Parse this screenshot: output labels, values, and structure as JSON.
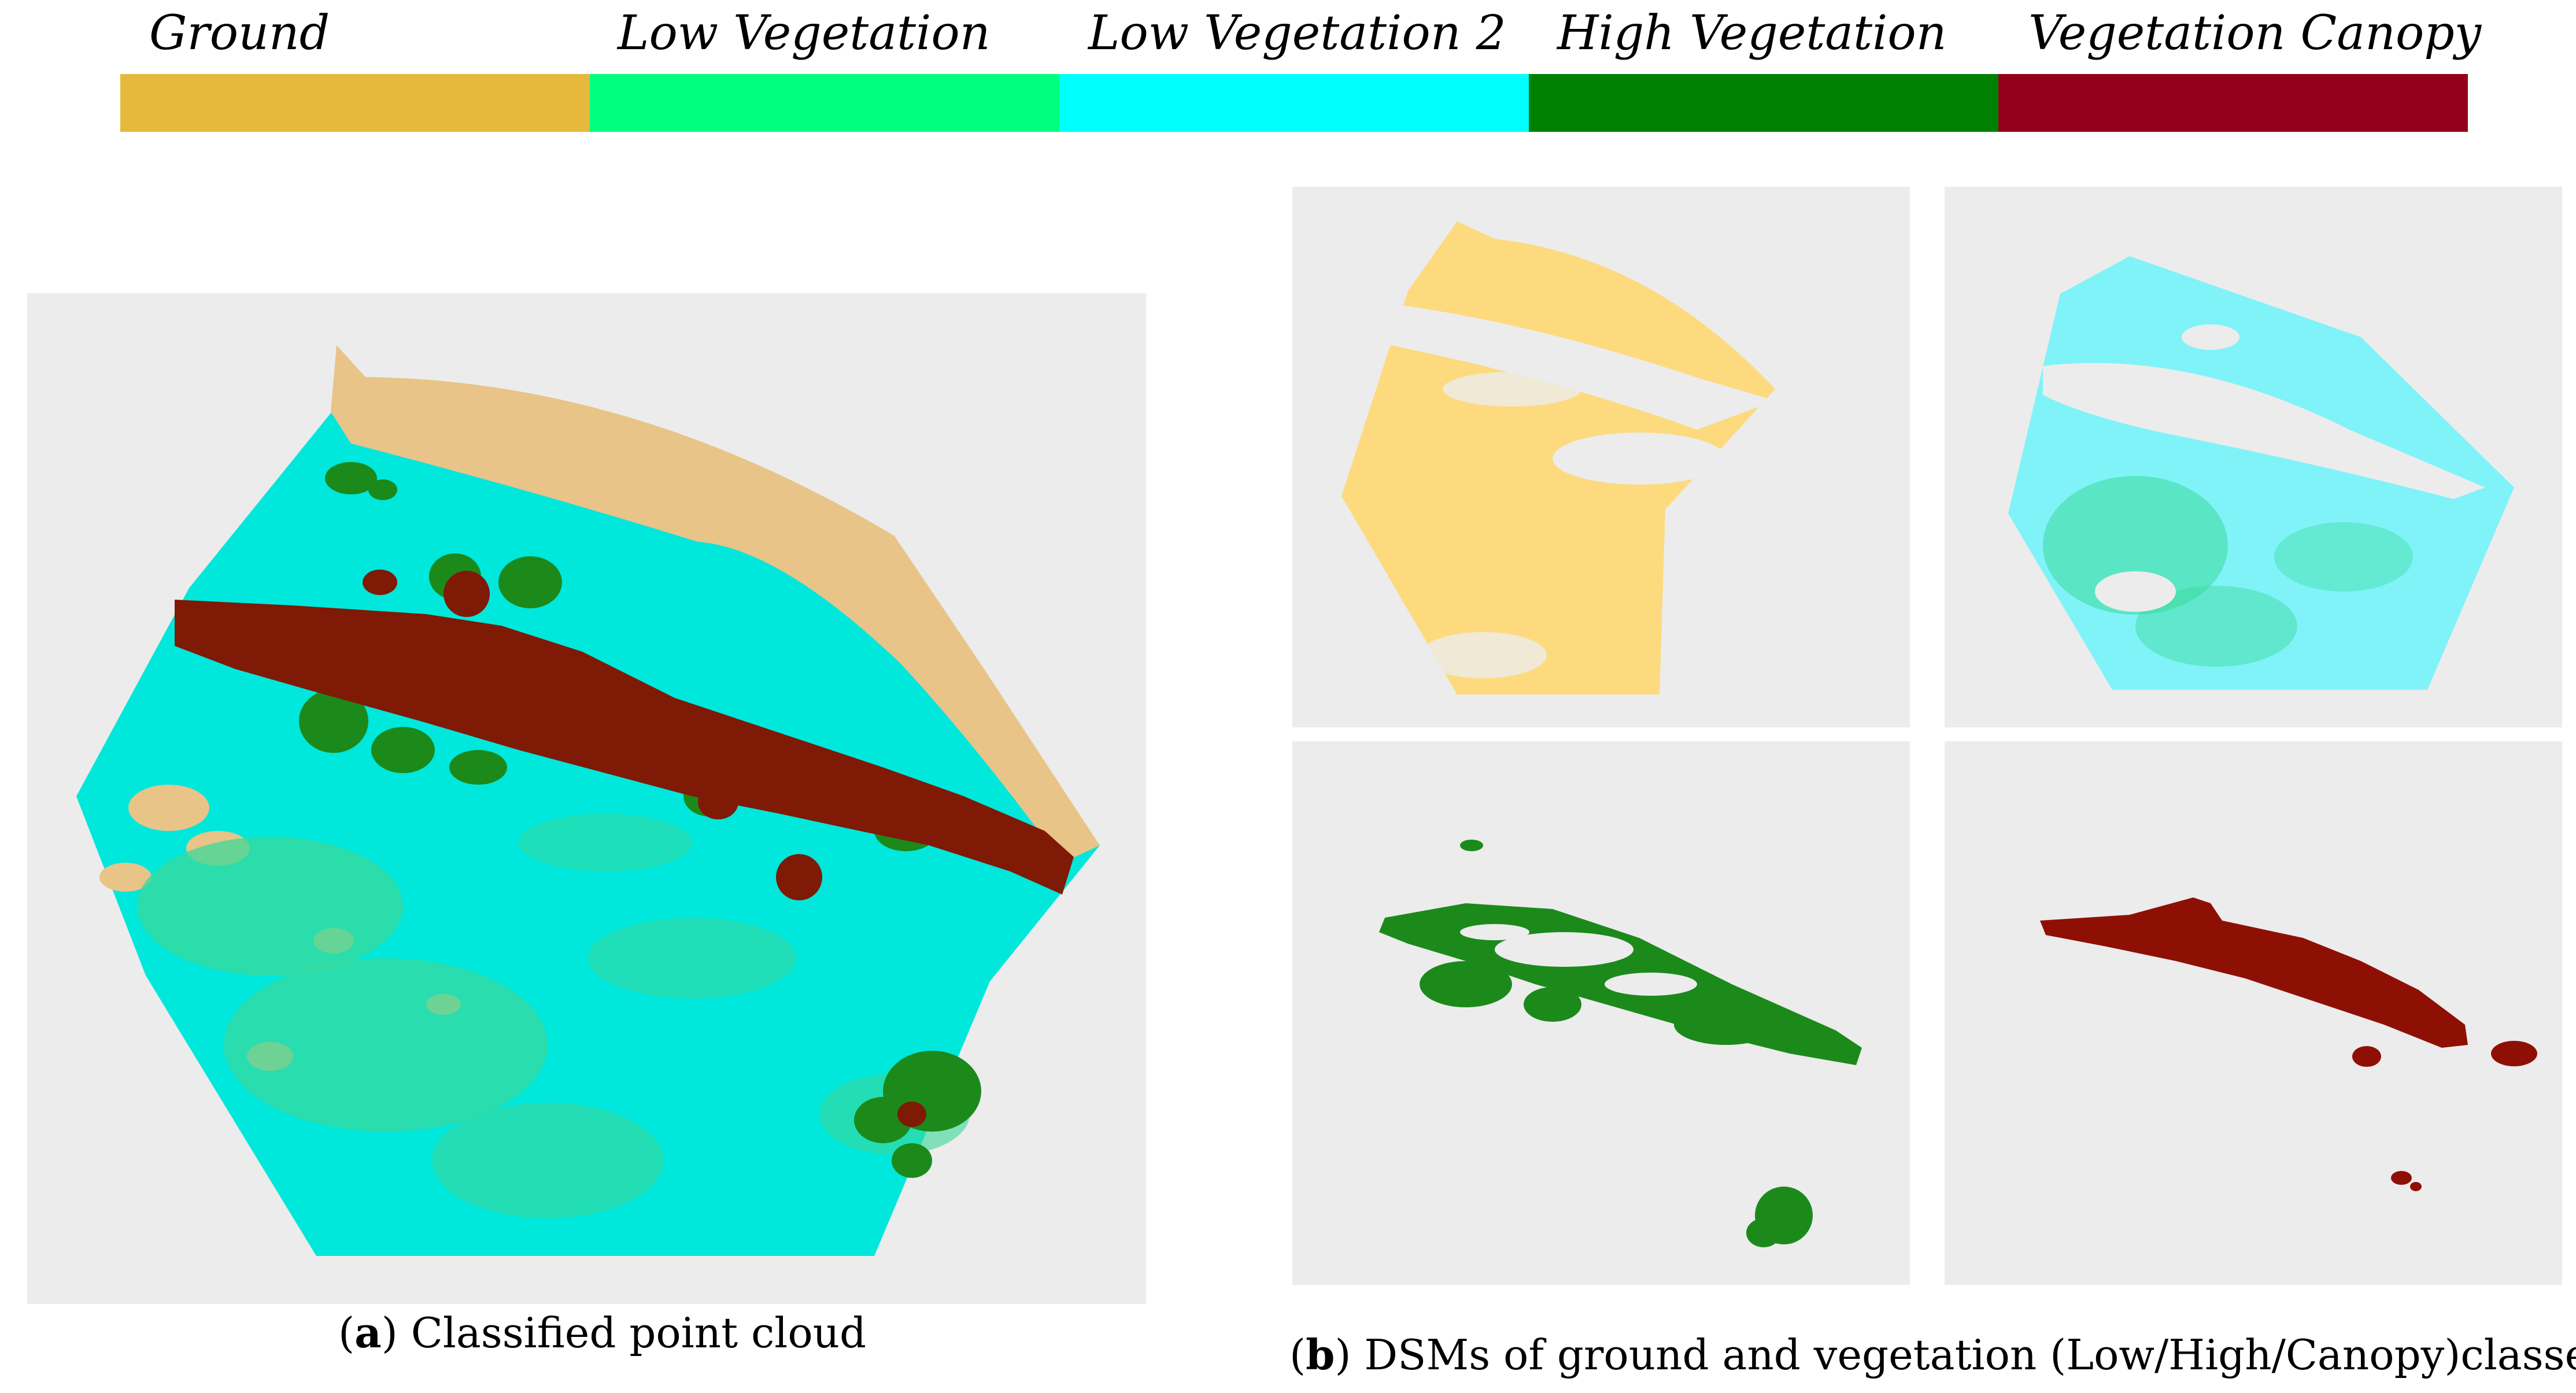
{
  "legend": {
    "items": [
      {
        "label": "Ground",
        "color": "#e6b93c"
      },
      {
        "label": "Low Vegetation",
        "color": "#00ff7f"
      },
      {
        "label": "Low Vegetation 2",
        "color": "#00ffff"
      },
      {
        "label": "High Vegetation",
        "color": "#008000"
      },
      {
        "label": "Vegetation Canopy",
        "color": "#92001a"
      }
    ]
  },
  "colors": {
    "panel_bg": "#ececec",
    "ground_dsm": "#fdda7e",
    "ground_cloud": "#e8c488",
    "low_veg_2_cloud": "#00e7dc",
    "low_veg_2_dsm": "#80f3f9",
    "low_veg_cloud": "#3ad99a",
    "high_veg": "#1b8a1b",
    "canopy": "#7e1a05",
    "canopy_dsm": "#8e1005"
  },
  "captions": {
    "a": {
      "letter": "a",
      "text": "Classified point cloud"
    },
    "b": {
      "letter": "b",
      "text": "DSMs of ground and vegetation (Low/High/Canopy)classes"
    }
  }
}
